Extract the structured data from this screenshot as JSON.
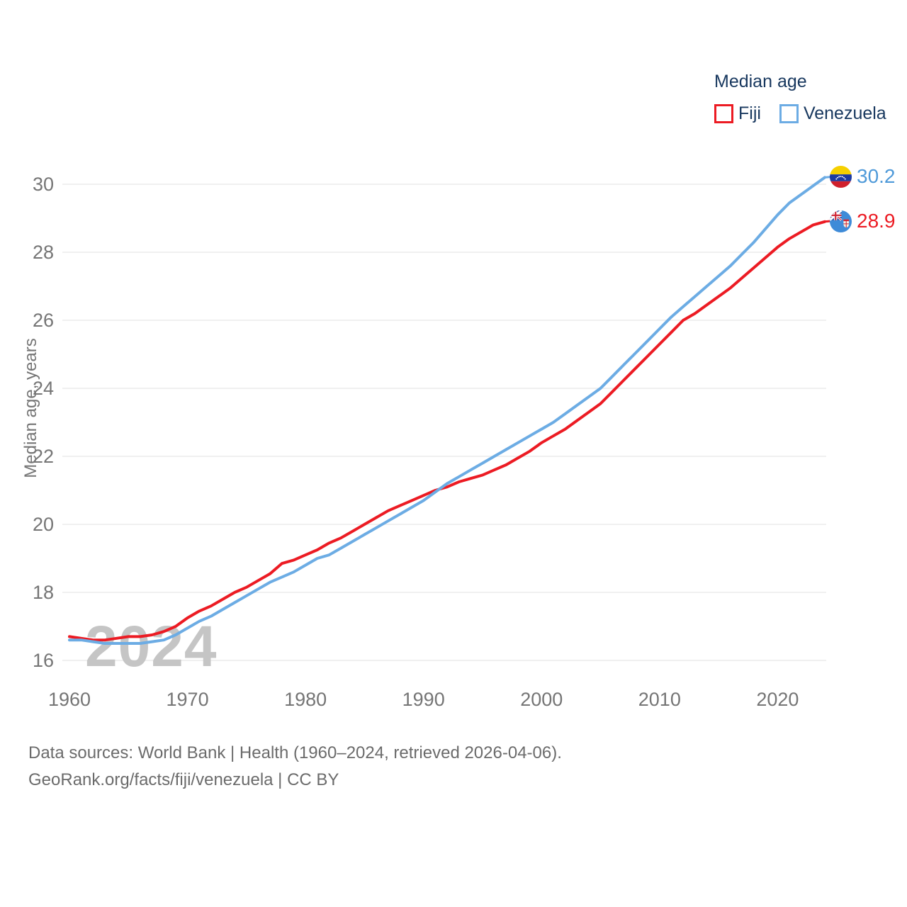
{
  "legend": {
    "title": "Median age",
    "items": [
      {
        "label": "Fiji",
        "color": "#ec1b23"
      },
      {
        "label": "Venezuela",
        "color": "#6cace4"
      }
    ]
  },
  "y_axis": {
    "title": "Median age, years",
    "ticks": [
      16,
      18,
      20,
      22,
      24,
      26,
      28,
      30
    ]
  },
  "x_axis": {
    "ticks": [
      1960,
      1970,
      1980,
      1990,
      2000,
      2010,
      2020
    ]
  },
  "watermark": "2024",
  "end_labels": [
    {
      "series": "Venezuela",
      "value": "30.2",
      "color": "#4f9ad9",
      "flag": "venezuela-flag"
    },
    {
      "series": "Fiji",
      "value": "28.9",
      "color": "#ec1b23",
      "flag": "fiji-flag"
    }
  ],
  "footer": {
    "line1": "Data sources: World Bank | Health (1960–2024, retrieved 2026-04-06).",
    "line2": "GeoRank.org/facts/fiji/venezuela | CC BY"
  },
  "colors": {
    "grid": "#ebebeb",
    "tick_text": "#757575",
    "watermark": "#c5c5c5",
    "heading_text": "#17375e"
  },
  "chart_data": {
    "type": "line",
    "title": "Median age",
    "ylabel": "Median age, years",
    "xlabel": "",
    "x_range": [
      1960,
      2024
    ],
    "ylim": [
      16,
      31
    ],
    "grid": "horizontal",
    "legend_position": "top-right",
    "years": [
      1960,
      1961,
      1962,
      1963,
      1964,
      1965,
      1966,
      1967,
      1968,
      1969,
      1970,
      1971,
      1972,
      1973,
      1974,
      1975,
      1976,
      1977,
      1978,
      1979,
      1980,
      1981,
      1982,
      1983,
      1984,
      1985,
      1986,
      1987,
      1988,
      1989,
      1990,
      1991,
      1992,
      1993,
      1994,
      1995,
      1996,
      1997,
      1998,
      1999,
      2000,
      2001,
      2002,
      2003,
      2004,
      2005,
      2006,
      2007,
      2008,
      2009,
      2010,
      2011,
      2012,
      2013,
      2014,
      2015,
      2016,
      2017,
      2018,
      2019,
      2020,
      2021,
      2022,
      2023,
      2024
    ],
    "series": [
      {
        "name": "Fiji",
        "color": "#ec1b23",
        "end_value": 28.9,
        "values": [
          16.7,
          16.65,
          16.6,
          16.6,
          16.65,
          16.7,
          16.7,
          16.75,
          16.85,
          17.0,
          17.25,
          17.45,
          17.6,
          17.8,
          18.0,
          18.15,
          18.35,
          18.55,
          18.85,
          18.95,
          19.1,
          19.25,
          19.45,
          19.6,
          19.8,
          20.0,
          20.2,
          20.4,
          20.55,
          20.7,
          20.85,
          21.0,
          21.1,
          21.25,
          21.35,
          21.45,
          21.6,
          21.75,
          21.95,
          22.15,
          22.4,
          22.6,
          22.8,
          23.05,
          23.3,
          23.55,
          23.9,
          24.25,
          24.6,
          24.95,
          25.3,
          25.65,
          26.0,
          26.2,
          26.45,
          26.7,
          26.95,
          27.25,
          27.55,
          27.85,
          28.15,
          28.4,
          28.6,
          28.8,
          28.9
        ]
      },
      {
        "name": "Venezuela",
        "color": "#6cace4",
        "end_value": 30.2,
        "values": [
          16.6,
          16.6,
          16.55,
          16.5,
          16.5,
          16.5,
          16.5,
          16.55,
          16.6,
          16.75,
          16.95,
          17.15,
          17.3,
          17.5,
          17.7,
          17.9,
          18.1,
          18.3,
          18.45,
          18.6,
          18.8,
          19.0,
          19.1,
          19.3,
          19.5,
          19.7,
          19.9,
          20.1,
          20.3,
          20.5,
          20.7,
          20.95,
          21.2,
          21.4,
          21.6,
          21.8,
          22.0,
          22.2,
          22.4,
          22.6,
          22.8,
          23.0,
          23.25,
          23.5,
          23.75,
          24.0,
          24.35,
          24.7,
          25.05,
          25.4,
          25.75,
          26.1,
          26.4,
          26.7,
          27.0,
          27.3,
          27.6,
          27.95,
          28.3,
          28.7,
          29.1,
          29.45,
          29.7,
          29.95,
          30.2
        ]
      }
    ]
  }
}
